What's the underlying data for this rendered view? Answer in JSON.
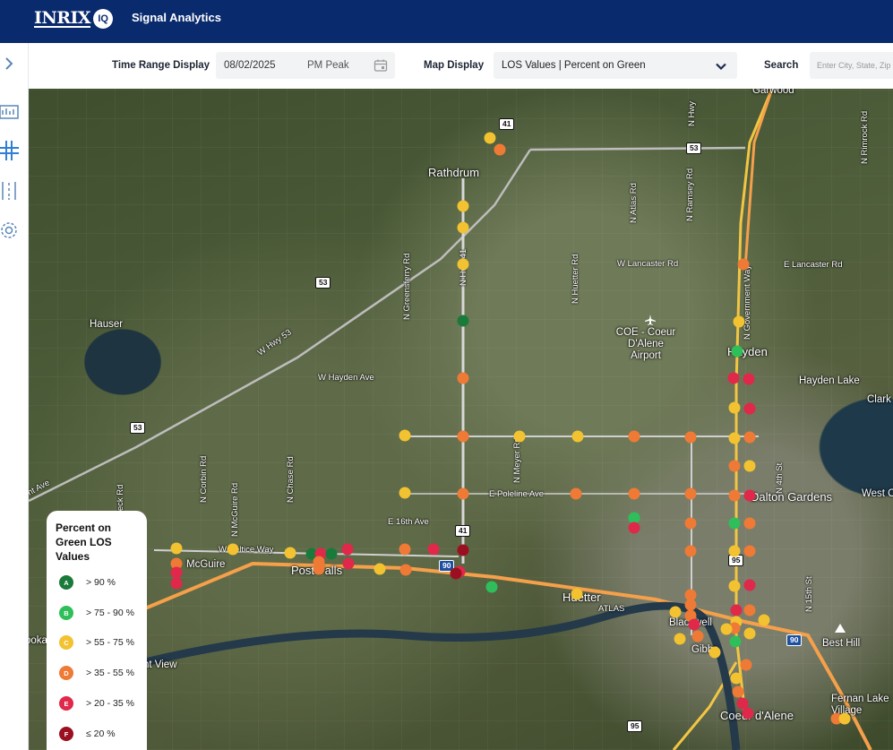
{
  "header": {
    "logo_text": "INRIX",
    "logo_badge": "IQ",
    "app_title": "Signal Analytics"
  },
  "sidebar": {
    "icons": [
      "collapse-chevron-icon",
      "dashboard-icon",
      "intersection-icon",
      "corridor-icon",
      "settings-gear-icon"
    ]
  },
  "toolbar": {
    "time_range_label": "Time Range Display",
    "date_value": "08/02/2025",
    "period_value": "PM Peak",
    "map_display_label": "Map Display",
    "map_display_value": "LOS Values | Percent on Green",
    "search_label": "Search",
    "search_placeholder": "Enter City, State, Zip Code"
  },
  "map": {
    "places": [
      {
        "name": "Rathdrum",
        "big": true
      },
      {
        "name": "Hauser",
        "big": false
      },
      {
        "name": "Hayden",
        "big": true
      },
      {
        "name": "Hayden Lake",
        "big": false
      },
      {
        "name": "Dalton Gardens",
        "big": true
      },
      {
        "name": "Post Falls",
        "big": true
      },
      {
        "name": "McGuire",
        "big": false
      },
      {
        "name": "Huetter",
        "big": true
      },
      {
        "name": "Blackwell",
        "big": false
      },
      {
        "name": "Gibbs",
        "big": false
      },
      {
        "name": "Coeur d'Alene",
        "big": true
      },
      {
        "name": "Fernan Lake Village",
        "big": false
      },
      {
        "name": "Best Hill",
        "big": false
      },
      {
        "name": "Garwood",
        "big": false
      },
      {
        "name": "Clark",
        "big": false
      },
      {
        "name": "West C",
        "big": false
      },
      {
        "name": "COE - Coeur D'Alene Airport",
        "big": false
      },
      {
        "name": "nt View",
        "big": false
      },
      {
        "name": "ooka",
        "big": false
      }
    ],
    "streets": [
      "W Hwy 53",
      "W Lancaster Rd",
      "E Lancaster Rd",
      "W Hayden Ave",
      "E Poleline Ave",
      "E 16th Ave",
      "W Seltice Way",
      "N Hwy 41",
      "N Meyer Rd",
      "N Huetter Rd",
      "N Atlas Rd",
      "N Ramsey Rd",
      "N Government Way",
      "N Rimrock Rd",
      "N Greensferry Rd",
      "N Chase Rd",
      "N McGuire Rd",
      "N Corbin Rd",
      "N 4th St",
      "N 15th St",
      "N Beck Rd",
      "ATLAS",
      "N Hwy",
      "nt Ave"
    ],
    "shields": [
      "41",
      "53",
      "53",
      "53",
      "41",
      "90",
      "90",
      "95",
      "95"
    ],
    "los_colors": {
      "A": "#1a7a3a",
      "B": "#2fbf5a",
      "C": "#f2c230",
      "D": "#ee7a35",
      "E": "#e0284a",
      "F": "#9b1020"
    }
  },
  "legend": {
    "title": "Percent on Green LOS Values",
    "items": [
      {
        "grade": "A",
        "label": "> 90 %",
        "color": "#1a7a3a"
      },
      {
        "grade": "B",
        "label": "> 75 - 90 %",
        "color": "#2fbf5a"
      },
      {
        "grade": "C",
        "label": "> 55 - 75 %",
        "color": "#f2c230"
      },
      {
        "grade": "D",
        "label": "> 35 - 55 %",
        "color": "#ee7a35"
      },
      {
        "grade": "E",
        "label": "> 20 - 35 %",
        "color": "#e0284a"
      },
      {
        "grade": "F",
        "label": "≤ 20 %",
        "color": "#9b1020"
      }
    ]
  }
}
